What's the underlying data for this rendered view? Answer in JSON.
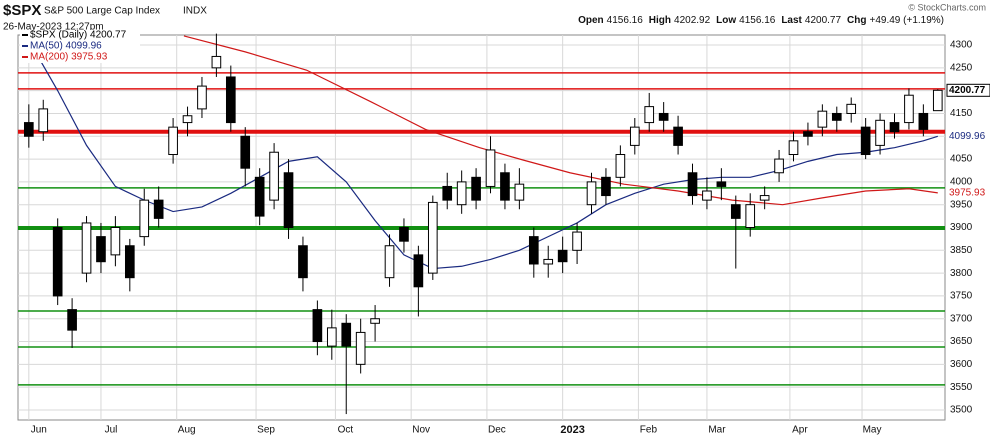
{
  "chart_data": {
    "type": "candlestick",
    "symbol": "$SPX",
    "title": "S&P 500 Large Cap Index",
    "exchange": "INDX",
    "timestamp": "26-May-2023 12:27pm",
    "copyright": "© StockCharts.com",
    "quote": [
      {
        "label": "Open",
        "value": 4156.16
      },
      {
        "label": "High",
        "value": 4202.92
      },
      {
        "label": "Low",
        "value": 4156.16
      },
      {
        "label": "Last",
        "value": 4200.77
      },
      {
        "label": "Chg",
        "value": "+49.49 (+1.19%)"
      }
    ],
    "price": {
      "name": "$SPX (Daily) 4200.77",
      "color": "#000000",
      "x": [
        0,
        4,
        8,
        12,
        16,
        20,
        24,
        28,
        32,
        36,
        40,
        44,
        48,
        52,
        56,
        60,
        64,
        68,
        72,
        76,
        80,
        84,
        88,
        92,
        96,
        100,
        104,
        108,
        112,
        116,
        120,
        124,
        128,
        132,
        136,
        140,
        144,
        148,
        152,
        156,
        160,
        164,
        168,
        172,
        176,
        180,
        184,
        188,
        192,
        196,
        200,
        204,
        208,
        212,
        216,
        220,
        224,
        228,
        232,
        236,
        240,
        244,
        248,
        252
      ],
      "open": [
        4130,
        4110,
        3900,
        3720,
        3800,
        3880,
        3840,
        3860,
        3880,
        3960,
        4060,
        4130,
        4160,
        4250,
        4230,
        4100,
        4010,
        3960,
        4020,
        3860,
        3720,
        3640,
        3690,
        3600,
        3690,
        3790,
        3900,
        3840,
        3800,
        3990,
        3950,
        4010,
        3990,
        4020,
        3960,
        3880,
        3820,
        3850,
        3850,
        3950,
        4010,
        4010,
        4080,
        4130,
        4150,
        4120,
        4020,
        3960,
        4000,
        3950,
        3900,
        3960,
        4020,
        4060,
        4110,
        4120,
        4150,
        4150,
        4120,
        4080,
        4130,
        4130,
        4150,
        4156.16
      ],
      "high": [
        4170,
        4180,
        3920,
        3745,
        3925,
        3910,
        3925,
        3875,
        3985,
        3990,
        4140,
        4165,
        4230,
        4325,
        4255,
        4120,
        4030,
        4085,
        4050,
        3880,
        3740,
        3720,
        3710,
        3700,
        3730,
        3885,
        3920,
        3860,
        3970,
        4020,
        4025,
        4030,
        4100,
        4040,
        4030,
        3900,
        3860,
        3880,
        3910,
        4020,
        4030,
        4080,
        4140,
        4195,
        4175,
        4145,
        4040,
        4010,
        4030,
        3970,
        3975,
        3990,
        4070,
        4110,
        4130,
        4170,
        4165,
        4185,
        4140,
        4150,
        4150,
        4205,
        4170,
        4202.92
      ],
      "low": [
        4075,
        4090,
        3730,
        3636,
        3780,
        3800,
        3815,
        3760,
        3860,
        3900,
        4040,
        4100,
        4140,
        4230,
        4110,
        3990,
        3905,
        3940,
        3875,
        3760,
        3620,
        3610,
        3491,
        3580,
        3650,
        3770,
        3845,
        3705,
        3785,
        3940,
        3930,
        3940,
        3975,
        3940,
        3940,
        3790,
        3790,
        3800,
        3820,
        3930,
        3950,
        3990,
        4060,
        4110,
        4110,
        4060,
        3950,
        3940,
        3960,
        3810,
        3880,
        3940,
        4000,
        4045,
        4080,
        4100,
        4110,
        4130,
        4050,
        4060,
        4095,
        4115,
        4100,
        4156.16
      ],
      "close": [
        4100,
        4160,
        3750,
        3675,
        3910,
        3825,
        3900,
        3790,
        3960,
        3920,
        4120,
        4145,
        4210,
        4275,
        4130,
        4030,
        3925,
        4065,
        3900,
        3790,
        3650,
        3680,
        3640,
        3670,
        3700,
        3860,
        3870,
        3770,
        3955,
        3960,
        4000,
        3960,
        4070,
        3960,
        3995,
        3820,
        3830,
        3825,
        3890,
        4000,
        3970,
        4060,
        4120,
        4165,
        4135,
        4080,
        3970,
        3980,
        3990,
        3920,
        3950,
        3970,
        4050,
        4090,
        4100,
        4155,
        4135,
        4170,
        4060,
        4135,
        4110,
        4190,
        4115,
        4200.77
      ]
    },
    "series": [
      {
        "name": "MA(50) 4099.96",
        "color": "#1a2a80",
        "x": [
          0,
          8,
          16,
          24,
          32,
          40,
          48,
          56,
          64,
          72,
          80,
          88,
          96,
          104,
          112,
          120,
          128,
          136,
          144,
          152,
          160,
          168,
          176,
          184,
          192,
          200,
          208,
          216,
          224,
          232,
          240,
          248,
          252
        ],
        "values": [
          4310,
          4200,
          4080,
          3990,
          3960,
          3935,
          3945,
          3975,
          4010,
          4045,
          4055,
          4000,
          3915,
          3840,
          3810,
          3815,
          3830,
          3850,
          3880,
          3910,
          3950,
          3975,
          3995,
          4005,
          4010,
          4010,
          4025,
          4045,
          4060,
          4065,
          4075,
          4090,
          4099.96
        ]
      },
      {
        "name": "MA(200) 3975.93",
        "color": "#d01818",
        "x": [
          43,
          60,
          77,
          95,
          110,
          125,
          137,
          150,
          165,
          180,
          195,
          209,
          220,
          232,
          244,
          252
        ],
        "values": [
          4320,
          4285,
          4245,
          4175,
          4115,
          4075,
          4048,
          4020,
          3995,
          3980,
          3960,
          3950,
          3965,
          3980,
          3985,
          3975.93
        ]
      }
    ],
    "hlines": [
      {
        "value": 4239,
        "color": "#e01010",
        "thick": false
      },
      {
        "value": 4204,
        "color": "#e01010",
        "thick": false
      },
      {
        "value": 4110,
        "color": "#e01010",
        "thick": true
      },
      {
        "value": 3987,
        "color": "#129012",
        "thick": false
      },
      {
        "value": 3899,
        "color": "#129012",
        "thick": true
      },
      {
        "value": 3717,
        "color": "#129012",
        "thick": false
      },
      {
        "value": 3638,
        "color": "#129012",
        "thick": false
      },
      {
        "value": 3555,
        "color": "#129012",
        "thick": false
      }
    ],
    "xlim": [
      -3,
      254
    ],
    "ylim": [
      3478,
      4322
    ],
    "xticks": [
      {
        "value": 0,
        "label": "Jun"
      },
      {
        "value": 20,
        "label": "Jul"
      },
      {
        "value": 41,
        "label": "Aug"
      },
      {
        "value": 63,
        "label": "Sep"
      },
      {
        "value": 85,
        "label": "Oct"
      },
      {
        "value": 106,
        "label": "Nov"
      },
      {
        "value": 127,
        "label": "Dec"
      },
      {
        "value": 148,
        "label": "2023"
      },
      {
        "value": 169,
        "label": "Feb"
      },
      {
        "value": 188,
        "label": "Mar"
      },
      {
        "value": 211,
        "label": "Apr"
      },
      {
        "value": 231,
        "label": "May"
      }
    ],
    "yticks": [
      3500,
      3550,
      3600,
      3650,
      3700,
      3750,
      3800,
      3850,
      3900,
      3950,
      4000,
      4050,
      4100,
      4150,
      4200,
      4250,
      4300
    ],
    "grid": true
  }
}
